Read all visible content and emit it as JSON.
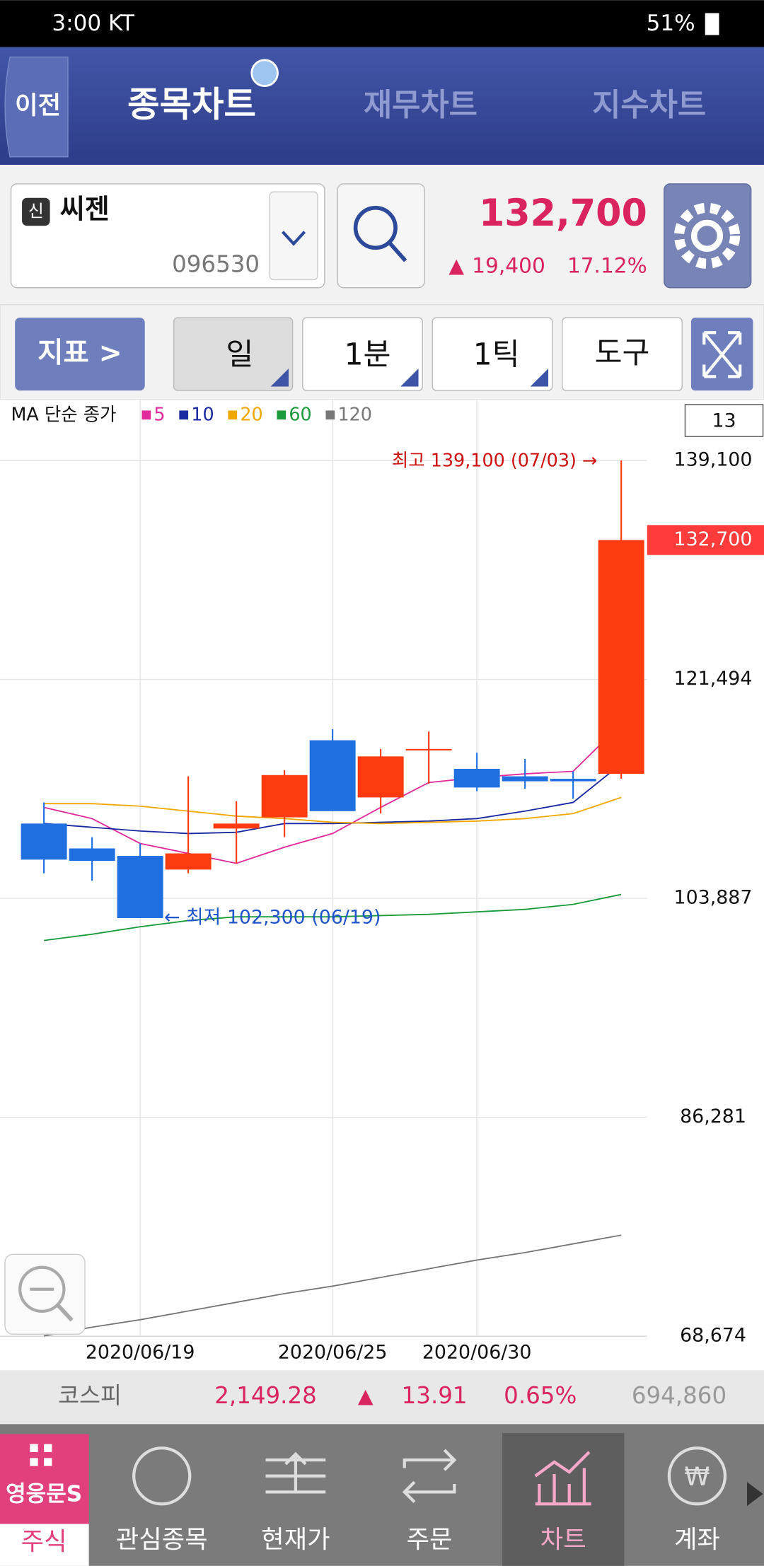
{
  "status_bar": {
    "time": "3:00 KT",
    "battery": "51%"
  },
  "header": {
    "back": "이전",
    "tabs": [
      "종목차트",
      "재무차트",
      "지수차트"
    ]
  },
  "stock": {
    "badge": "신",
    "name": "씨젠",
    "code": "096530",
    "price": "132,700",
    "change_sign": "▲",
    "change": "19,400",
    "change_rate": "17.12%"
  },
  "toolbar": {
    "indicator": "지표 >",
    "buttons": [
      "일",
      "1분",
      "1틱",
      "도구"
    ]
  },
  "chart_data": {
    "type": "candlestick",
    "legend_title": "MA 단순 종가",
    "visible_count": 13,
    "categories": [
      null,
      null,
      "2020/06/19",
      null,
      null,
      null,
      "2020/06/25",
      null,
      null,
      "2020/06/30",
      null,
      null,
      null
    ],
    "open": [
      109900,
      107900,
      107300,
      106200,
      109500,
      110400,
      116600,
      112000,
      115800,
      114300,
      113700,
      113500,
      113900
    ],
    "high": [
      111600,
      108800,
      108300,
      113700,
      111700,
      114200,
      117500,
      115900,
      117300,
      115600,
      115100,
      114100,
      139100
    ],
    "low": [
      105900,
      105300,
      102300,
      105900,
      106700,
      108800,
      110900,
      110700,
      113100,
      112500,
      112700,
      111900,
      113500
    ],
    "close": [
      107000,
      106900,
      102300,
      107500,
      109900,
      113800,
      110900,
      115300,
      115900,
      112800,
      113300,
      113300,
      132700
    ],
    "up_color": "#ff3b0f",
    "down_color": "#1f6fe0",
    "moving_averages": [
      {
        "name": "5",
        "color": "#e0299a",
        "values": [
          111200,
          110300,
          108300,
          107500,
          106700,
          108000,
          109100,
          111200,
          113200,
          113600,
          113900,
          114100,
          117900
        ]
      },
      {
        "name": "10",
        "color": "#1a2aa0",
        "values": [
          109900,
          109600,
          109300,
          109100,
          109200,
          109900,
          109900,
          110000,
          110100,
          110300,
          110900,
          111600,
          114700
        ]
      },
      {
        "name": "20",
        "color": "#f0a800",
        "values": [
          111500,
          111500,
          111300,
          110900,
          110500,
          110300,
          110000,
          109900,
          110000,
          110100,
          110300,
          110700,
          112000
        ]
      },
      {
        "name": "60",
        "color": "#1a9a3a",
        "values": [
          100500,
          101000,
          101600,
          102100,
          102400,
          102400,
          102400,
          102500,
          102600,
          102800,
          103000,
          103400,
          104200
        ]
      },
      {
        "name": "120",
        "color": "#777777",
        "values": [
          68700,
          69400,
          70000,
          70700,
          71400,
          72100,
          72700,
          73400,
          74100,
          74800,
          75400,
          76100,
          76800
        ]
      }
    ],
    "ylim": [
      68674,
      139100
    ],
    "yticks": [
      {
        "value": 139100,
        "label": "139,100"
      },
      {
        "value": 121494,
        "label": "121,494"
      },
      {
        "value": 103887,
        "label": "103,887"
      },
      {
        "value": 86281,
        "label": "86,281"
      },
      {
        "value": 68674,
        "label": "68,674"
      }
    ],
    "grid": true,
    "high_annotation": "최고 139,100 (07/03) →",
    "low_annotation": "← 최저 102,300 (06/19)",
    "current_price_tag": "132,700"
  },
  "index_bar": {
    "name": "코스피",
    "value": "2,149.28",
    "sign": "▲",
    "change": "13.91",
    "rate": "0.65%",
    "volume": "694,860"
  },
  "nav": {
    "logo": "영웅문S",
    "items": [
      "주식",
      "관심종목",
      "현재가",
      "주문",
      "차트",
      "계좌"
    ]
  }
}
